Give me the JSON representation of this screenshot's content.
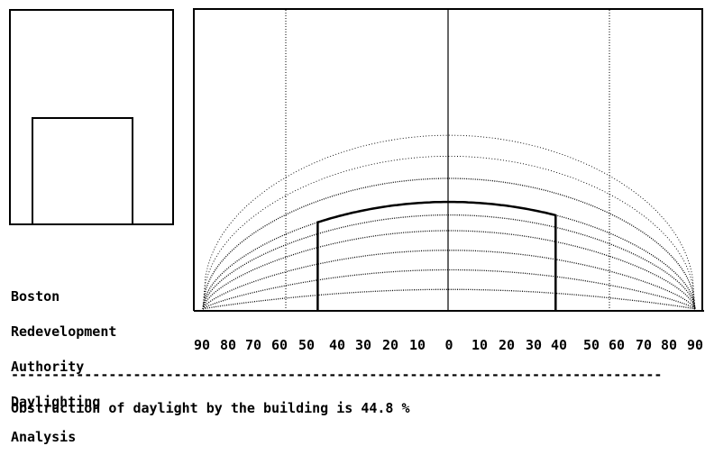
{
  "title_lines": [
    "Boston",
    "Redevelopment",
    "Authority",
    "Daylighting",
    "Analysis"
  ],
  "axis": {
    "tick_labels": [
      "90",
      "80",
      "70",
      "60",
      "50",
      "40",
      "30",
      "20",
      "10",
      "0",
      "10",
      "20",
      "30",
      "40",
      "50",
      "60",
      "70",
      "80",
      "90"
    ]
  },
  "divider": "--------------------------------------------------------------------------------",
  "result": {
    "text": "Obstruction of daylight by the building is 44.8 %",
    "obstruction_percent": 44.8
  },
  "chart_data": {
    "type": "line",
    "x_range": [
      -90,
      90
    ],
    "reference_lines_deg": [
      -57,
      0,
      57
    ],
    "building_profile": {
      "left_deg": -48,
      "right_deg": 39,
      "top_elevation_fraction": 0.82
    },
    "elevation_curve_levels": [
      0.15,
      0.3,
      0.45,
      0.6,
      0.72,
      0.82,
      1.0,
      1.17,
      1.33
    ]
  },
  "colors": {
    "foreground": "#000000",
    "background": "#ffffff"
  }
}
